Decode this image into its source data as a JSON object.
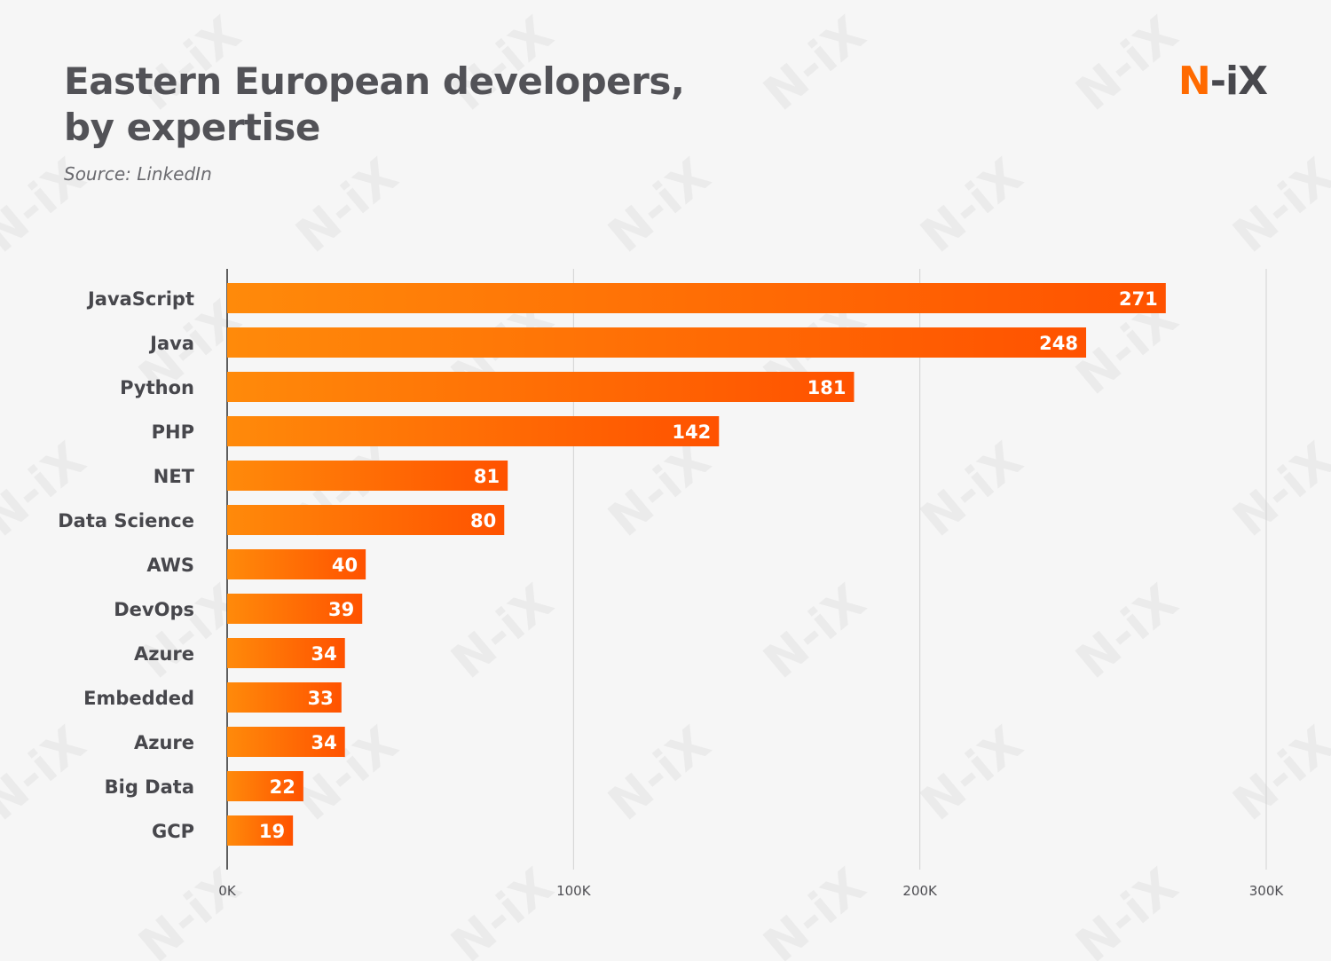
{
  "header": {
    "title_line1": "Eastern European developers,",
    "title_line2": "by expertise",
    "subtitle": "Source: LinkedIn",
    "logo_accent": "N",
    "logo_rest": "-iX",
    "watermark_text": "N-iX"
  },
  "colors": {
    "background": "#f6f6f6",
    "bar_start": "#ff8a0a",
    "bar_end": "#ff5200",
    "accent": "#ff6a00"
  },
  "chart_data": {
    "type": "bar",
    "orientation": "horizontal",
    "title": "Eastern European developers, by expertise",
    "subtitle": "Source: LinkedIn",
    "categories": [
      "JavaScript",
      "Java",
      "Python",
      "PHP",
      "NET",
      "Data Science",
      "AWS",
      "DevOps",
      "Azure",
      "Embedded",
      "Azure",
      "Big Data",
      "GCP"
    ],
    "values": [
      271,
      248,
      181,
      142,
      81,
      80,
      40,
      39,
      34,
      33,
      34,
      22,
      19
    ],
    "value_labels": [
      "271",
      "248",
      "181",
      "142",
      "81",
      "80",
      "40",
      "39",
      "34",
      "33",
      "34",
      "22",
      "19"
    ],
    "xlim": [
      0,
      300
    ],
    "x_unit": "thousands",
    "ticks": [
      0,
      100,
      200,
      300
    ],
    "tick_labels": [
      "0K",
      "100K",
      "200K",
      "300K"
    ],
    "grid": true,
    "xlabel": "",
    "ylabel": ""
  }
}
